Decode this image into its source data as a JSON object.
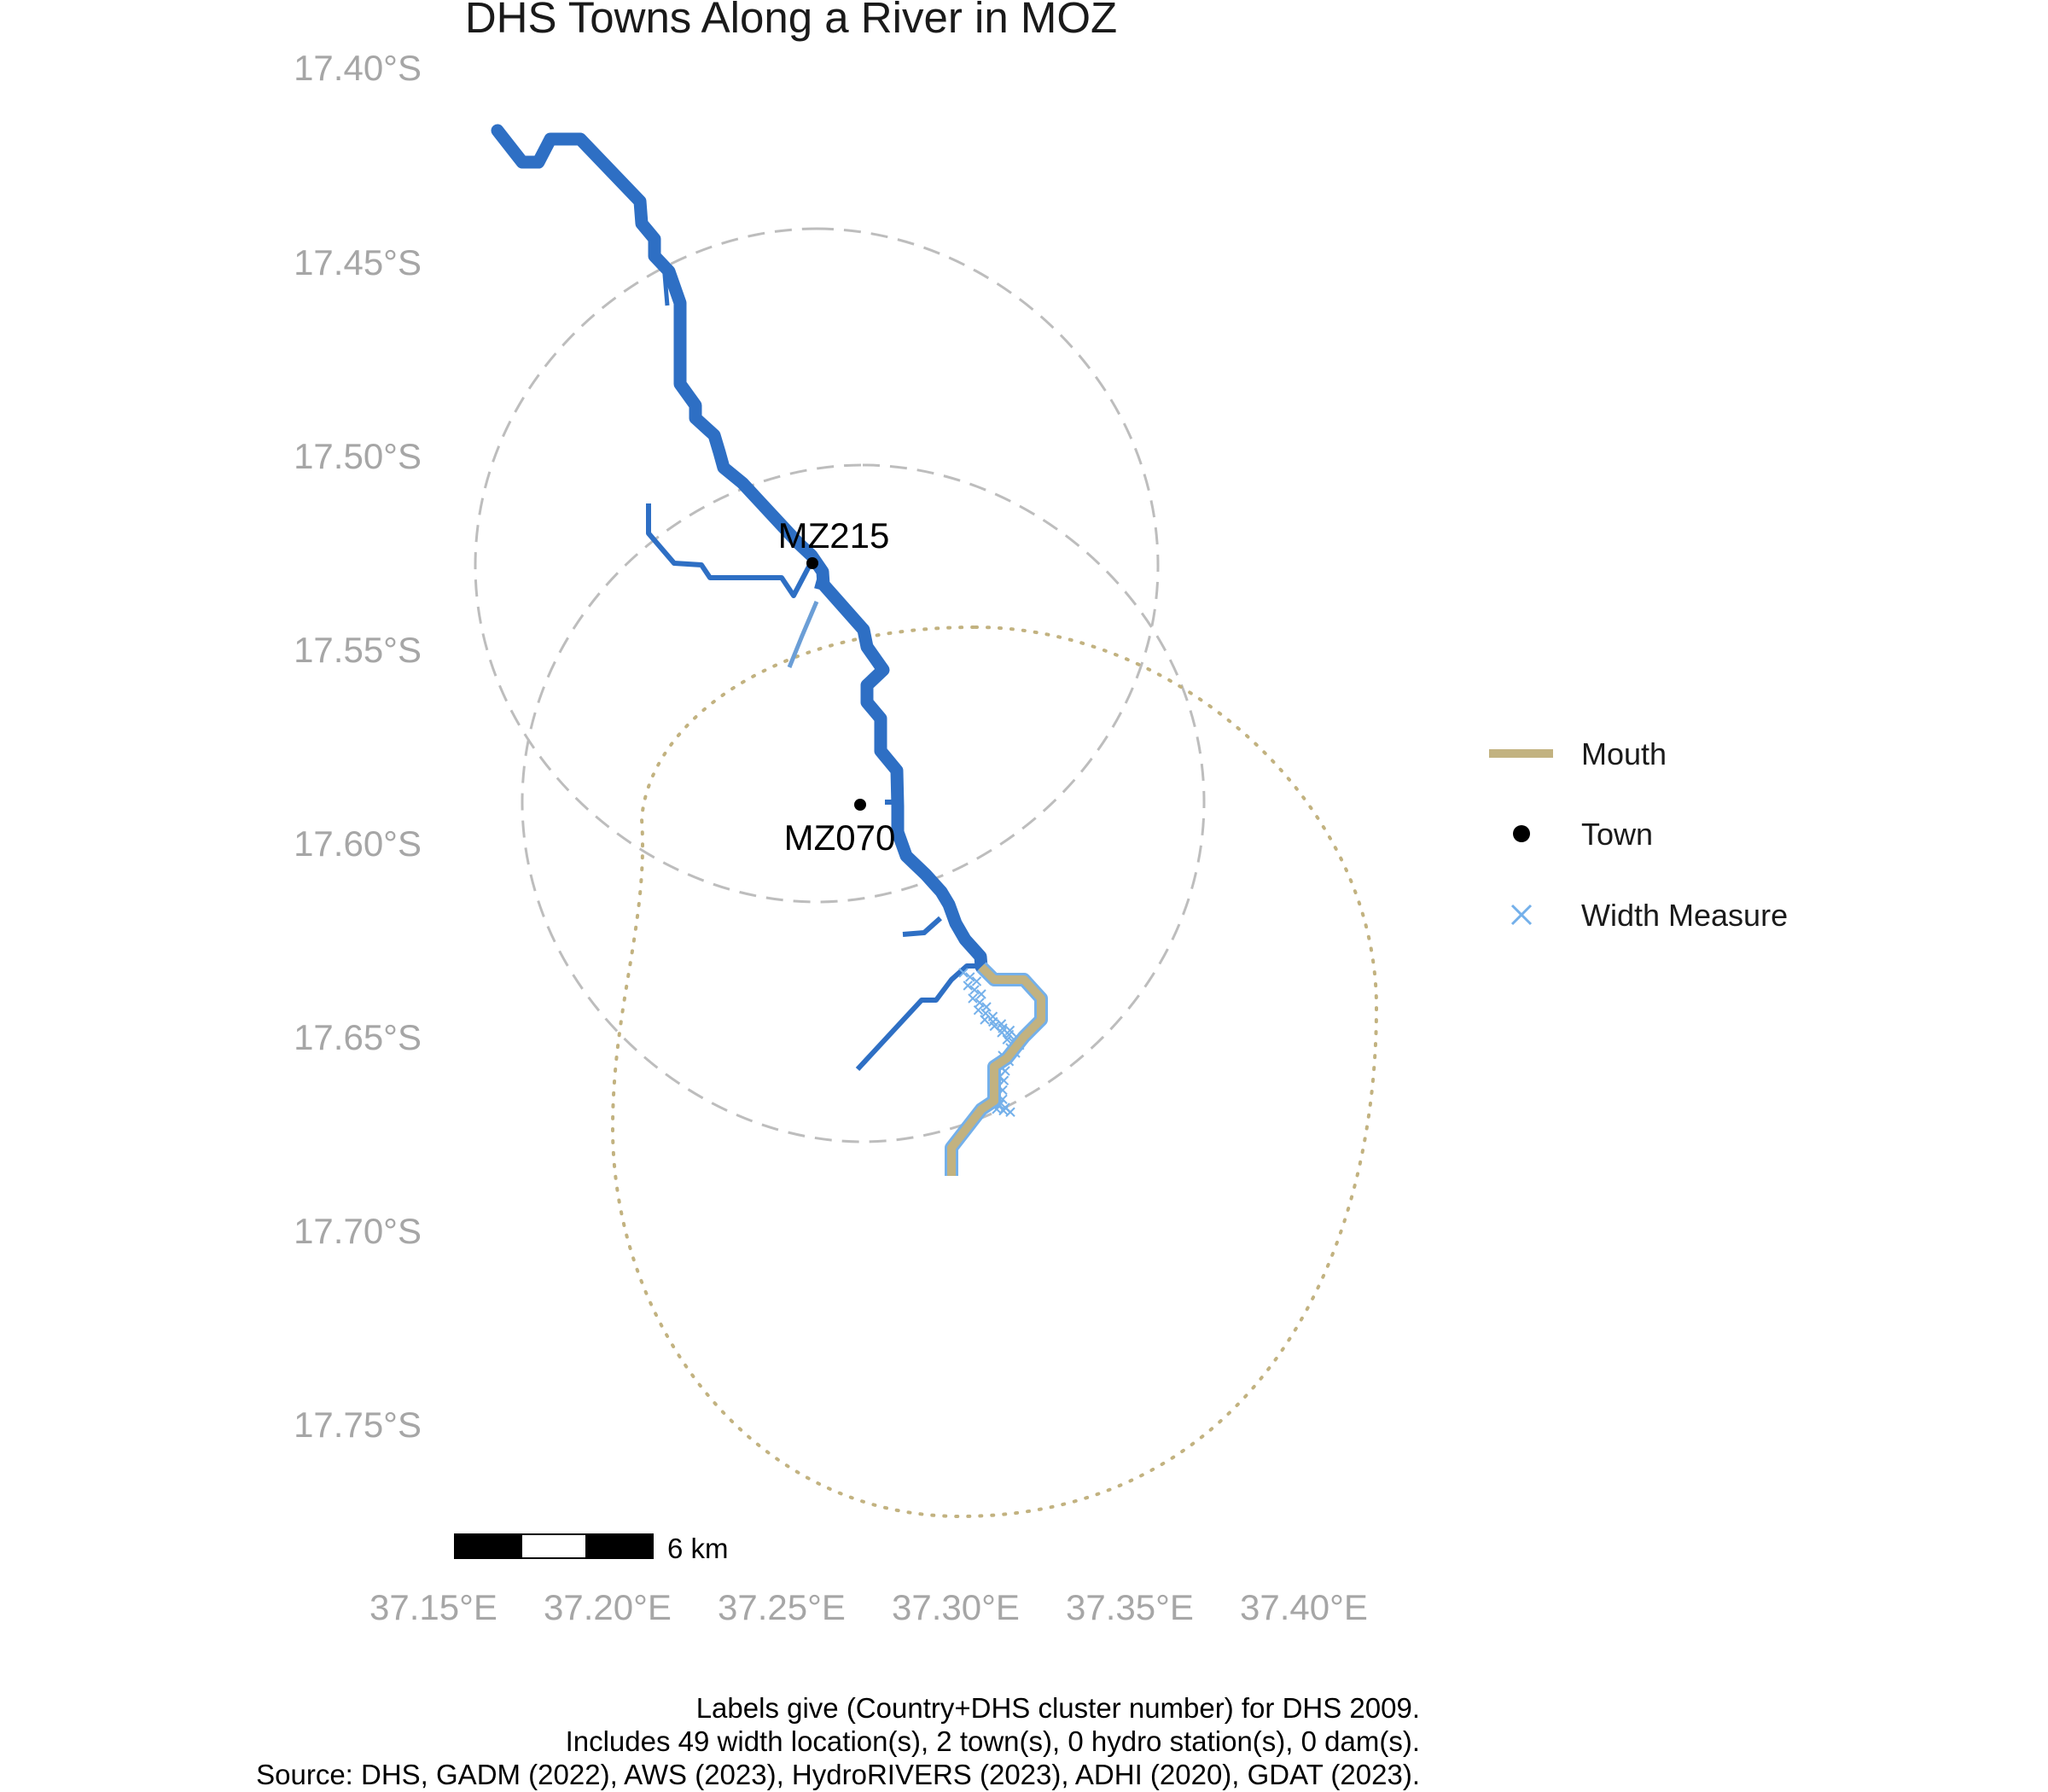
{
  "title": "DHS Towns Along a River in MOZ",
  "colors": {
    "river": "#2e6fc4",
    "river_light": "#6b9ed6",
    "mouth": "#c2b280",
    "town": "#000000",
    "width_measure": "#74b0ea",
    "buffer_town": "#bdbdbd",
    "buffer_mouth": "#c2b280",
    "tick_label": "#a6a6a6"
  },
  "axes": {
    "y_ticks": [
      "17.40°S",
      "17.45°S",
      "17.50°S",
      "17.55°S",
      "17.60°S",
      "17.65°S",
      "17.70°S",
      "17.75°S"
    ],
    "x_ticks": [
      "37.15°E",
      "37.20°E",
      "37.25°E",
      "37.30°E",
      "37.35°E",
      "37.40°E"
    ]
  },
  "towns": [
    {
      "label": "MZ215",
      "lon": 37.257,
      "lat": -17.528
    },
    {
      "label": "MZ070",
      "lon": 37.271,
      "lat": -17.59
    }
  ],
  "legend": {
    "mouth": "Mouth",
    "town": "Town",
    "width": "Width Measure",
    "width_icon": "x-cross-icon"
  },
  "scale_bar": {
    "label": "6 km"
  },
  "caption": {
    "line1": "Labels give (Country+DHS cluster number) for DHS 2009.",
    "line2": "Includes 49 width location(s), 2 town(s), 0 hydro station(s), 0 dam(s).",
    "line3": "Source: DHS, GADM (2022), AWS (2023), HydroRIVERS (2023), ADHI (2020), GDAT (2023)."
  }
}
